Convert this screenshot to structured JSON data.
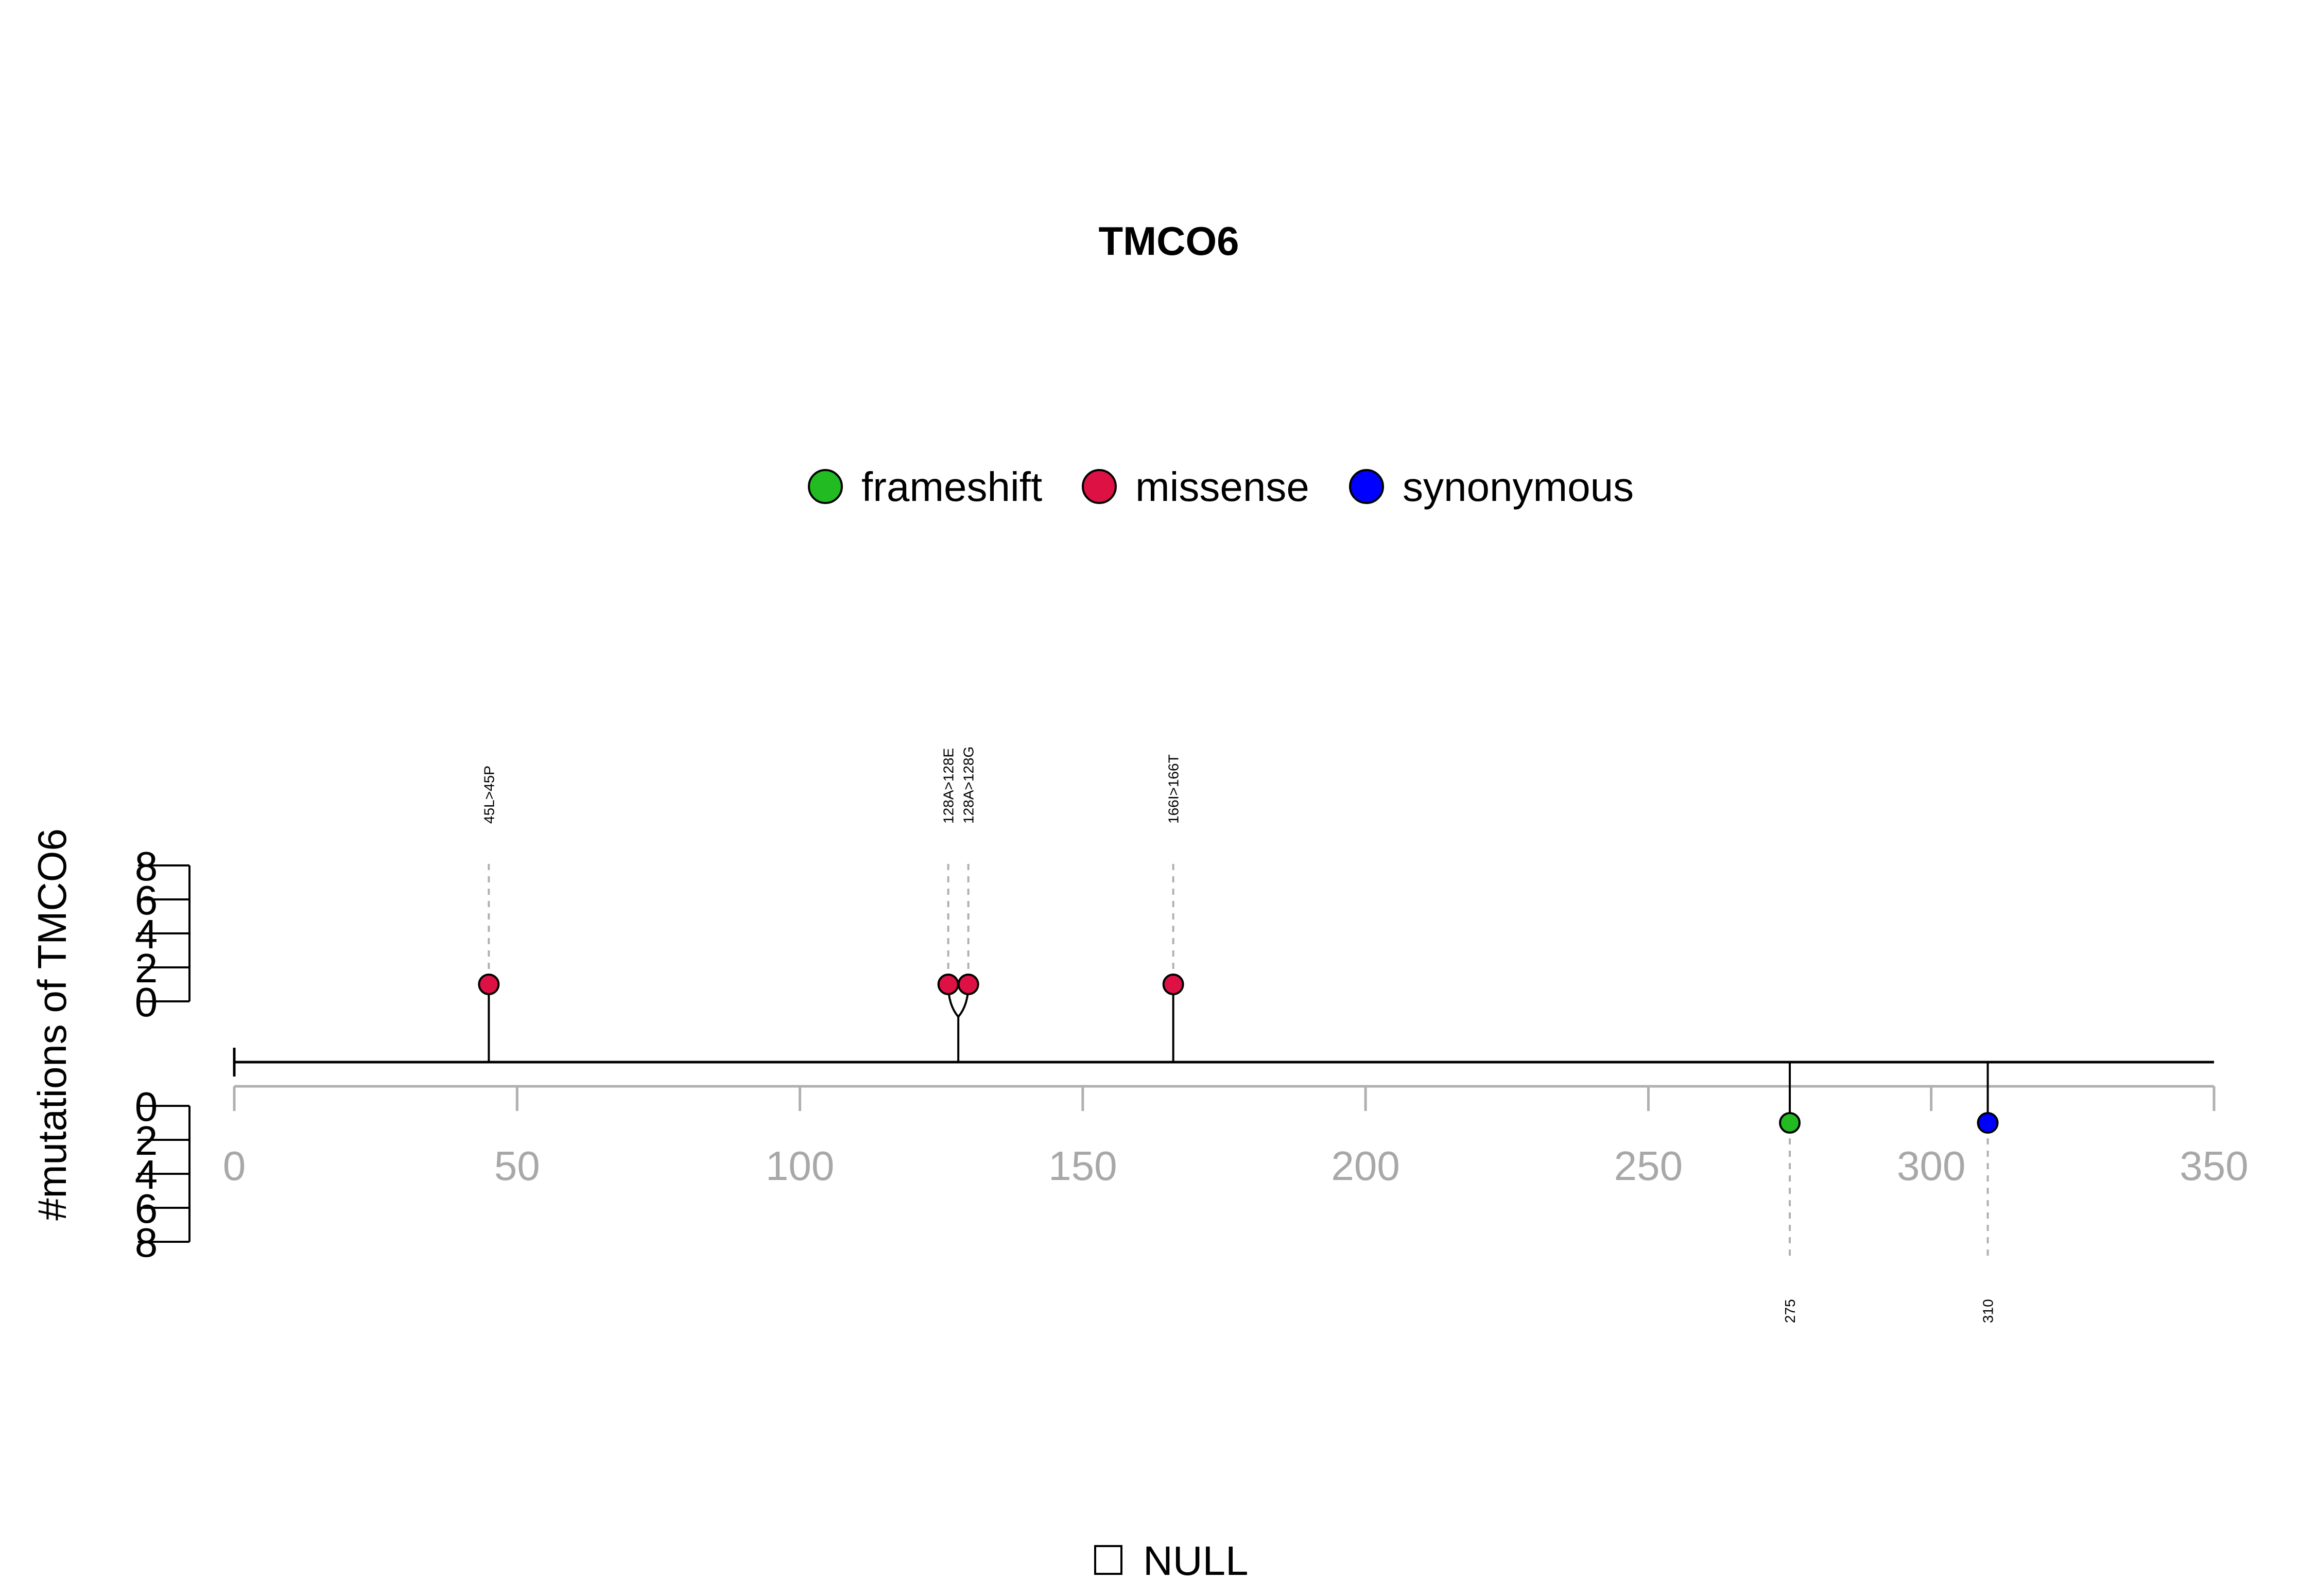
{
  "chart_data": {
    "type": "lollipop",
    "title": "TMCO6",
    "ylabel": "#mutations of TMCO6",
    "xlim": [
      0,
      350
    ],
    "x_ticks": [
      0,
      50,
      100,
      150,
      200,
      250,
      300,
      350
    ],
    "y_ticks": [
      0,
      2,
      4,
      6,
      8
    ],
    "legend": [
      {
        "label": "frameshift",
        "color": "#22bb22"
      },
      {
        "label": "missense",
        "color": "#dd1144"
      },
      {
        "label": "synonymous",
        "color": "#0000ff"
      }
    ],
    "mutations_top": [
      {
        "position": 45,
        "label": "45L>45P",
        "type": "missense",
        "count": 1
      },
      {
        "position": 128,
        "label": "128A>128E",
        "type": "missense",
        "count": 1
      },
      {
        "position": 128,
        "label": "128A>128G",
        "type": "missense",
        "count": 1
      },
      {
        "position": 166,
        "label": "166I>166T",
        "type": "missense",
        "count": 1
      }
    ],
    "mutations_bottom": [
      {
        "position": 275,
        "label": "275",
        "type": "frameshift",
        "count": 1
      },
      {
        "position": 310,
        "label": "310",
        "type": "synonymous",
        "count": 1
      }
    ],
    "domains_legend": "NULL"
  }
}
